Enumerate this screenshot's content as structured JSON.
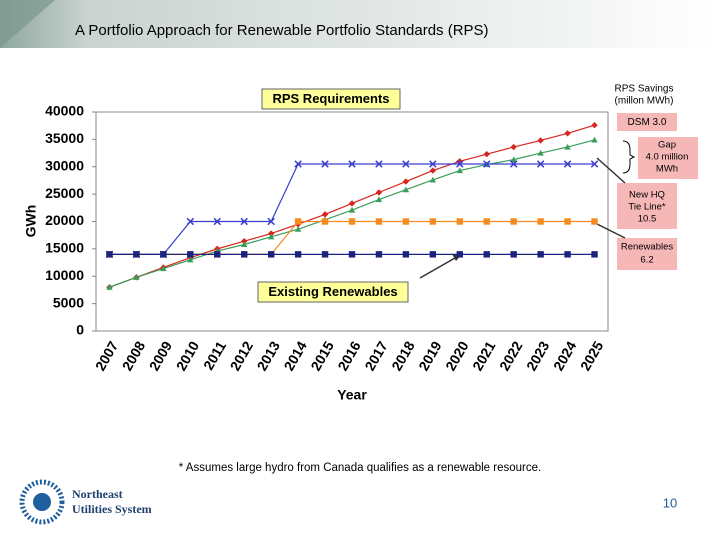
{
  "slide": {
    "title": "A Portfolio Approach for Renewable Portfolio Standards (RPS)",
    "footnote": "* Assumes large hydro from Canada qualifies as a renewable resource.",
    "logo": [
      "Northeast",
      "Utilities System"
    ],
    "page_number": "10"
  },
  "chart_data": {
    "type": "line",
    "x_label": "Year",
    "y_label": "GWh",
    "categories": [
      "2007",
      "2008",
      "2009",
      "2010",
      "2011",
      "2012",
      "2013",
      "2014",
      "2015",
      "2016",
      "2017",
      "2018",
      "2019",
      "2020",
      "2021",
      "2022",
      "2023",
      "2024",
      "2025"
    ],
    "series": [
      {
        "color": "#d7261e",
        "marker": "diamond",
        "values": [
          8000,
          9800,
          11600,
          13400,
          15000,
          16400,
          17800,
          19500,
          21300,
          23300,
          25300,
          27300,
          29300,
          31000,
          32300,
          33600,
          34800,
          36100,
          37600
        ]
      },
      {
        "color": "#3a9e5a",
        "marker": "triangle",
        "values": [
          8000,
          9800,
          11400,
          13000,
          14600,
          15800,
          17200,
          18600,
          20300,
          22100,
          24000,
          25800,
          27600,
          29300,
          30400,
          31300,
          32500,
          33600,
          34900
        ]
      },
      {
        "color": "#f58a1f",
        "marker": "square",
        "values": [
          14000,
          14000,
          14000,
          14000,
          14000,
          14000,
          14000,
          20000,
          20000,
          20000,
          20000,
          20000,
          20000,
          20000,
          20000,
          20000,
          20000,
          20000,
          20000
        ]
      },
      {
        "color": "#3a3fd0",
        "marker": "x",
        "values": [
          14000,
          14000,
          14000,
          20000,
          20000,
          20000,
          20000,
          30500,
          30500,
          30500,
          30500,
          30500,
          30500,
          30500,
          30500,
          30500,
          30500,
          30500,
          30500
        ]
      },
      {
        "color": "#1a237e",
        "marker": "square",
        "values": [
          14000,
          14000,
          14000,
          14000,
          14000,
          14000,
          14000,
          14000,
          14000,
          14000,
          14000,
          14000,
          14000,
          14000,
          14000,
          14000,
          14000,
          14000,
          14000
        ]
      }
    ],
    "ylim": [
      0,
      40000
    ],
    "yticks": [
      0,
      5000,
      10000,
      15000,
      20000,
      25000,
      30000,
      35000,
      40000
    ],
    "grid": false,
    "annotations": {
      "rps_requirements": "RPS Requirements",
      "existing_renewables": "Existing Renewables",
      "rps_savings": [
        "RPS Savings",
        "(millon MWh)"
      ],
      "dsm": "DSM 3.0",
      "gap": [
        "Gap",
        "4.0 million",
        "MWh"
      ],
      "hq": [
        "New HQ",
        "Tie Line*",
        "10.5"
      ],
      "renewables": [
        "Renewables",
        "6.2"
      ]
    }
  }
}
